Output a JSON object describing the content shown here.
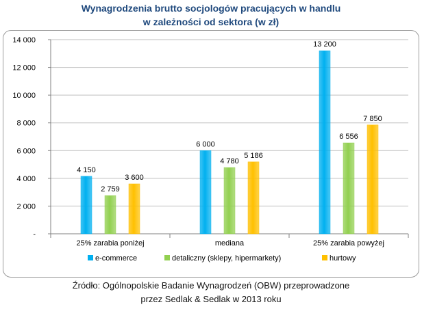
{
  "title_line1": "Wynagrodzenia brutto socjologów pracujących w handlu",
  "title_line2": "w zależności od sektora (w zł)",
  "source_line1": "Źródło: Ogólnopolskie Badanie Wynagrodzeń (OBW) przeprowadzone",
  "source_line2": "przez Sedlak & Sedlak w 2013 roku",
  "chart_data": {
    "type": "bar",
    "title": "Wynagrodzenia brutto socjologów pracujących w handlu w zależności od sektora (w zł)",
    "categories": [
      "25% zarabia poniżej",
      "mediana",
      "25% zarabia powyżej"
    ],
    "series": [
      {
        "name": "e-commerce",
        "values": [
          4150,
          6000,
          13200
        ],
        "labels": [
          "4 150",
          "6 000",
          "13 200"
        ],
        "color": "#00b0f0"
      },
      {
        "name": "detaliczny (sklepy, hipermarkety)",
        "values": [
          2759,
          4780,
          6556
        ],
        "labels": [
          "2 759",
          "4 780",
          "6 556"
        ],
        "color": "#92d050"
      },
      {
        "name": "hurtowy",
        "values": [
          3600,
          5186,
          7850
        ],
        "labels": [
          "3 600",
          "5 186",
          "7 850"
        ],
        "color": "#ffc000"
      }
    ],
    "yticks": [
      0,
      2000,
      4000,
      6000,
      8000,
      10000,
      12000,
      14000
    ],
    "ytick_labels": [
      "-",
      "2 000",
      "4 000",
      "6 000",
      "8 000",
      "10 000",
      "12 000",
      "14 000"
    ],
    "ylim": [
      0,
      14000
    ],
    "grid": true,
    "legend": "bottom"
  }
}
